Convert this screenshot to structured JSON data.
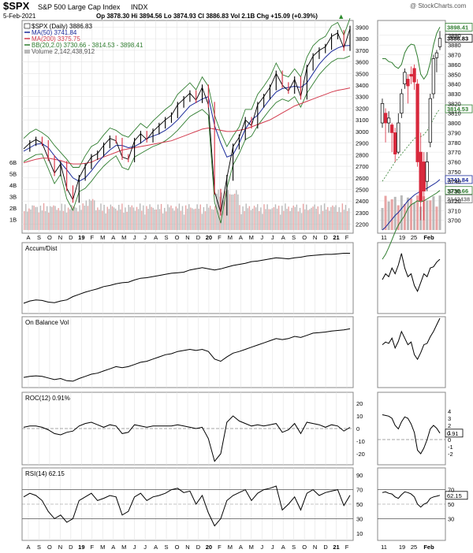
{
  "header": {
    "symbol": "$SPX",
    "name": "S&P 500 Large Cap Index",
    "exchange": "INDX",
    "watermark": "@ StockCharts.com",
    "date": "5-Feb-2021",
    "ohlc": "Op 3878.30  Hi 3894.56  Lo 3874.93  Cl 3886.83  Vol 2.1B  Chg +15.09 (+0.39%)",
    "arrow": "▲"
  },
  "legend": {
    "spx": "$SPX (Daily) 3886.83",
    "ma50": "MA(50) 3741.84",
    "ma200": "MA(200) 3375.75",
    "bb": "BB(20,2.0) 3730.66 - 3814.53 - 3898.41",
    "volume": "Volume 2,142,438,912"
  },
  "colors": {
    "ma50": "#1a2a9a",
    "ma200": "#d23b4e",
    "bb": "#2f7d2f",
    "price_up": "#000000",
    "price_down": "#d8283c",
    "volume": "#b9b9b9",
    "volume_down": "#e8a3a3",
    "grid": "#e3e3e3"
  },
  "main_axis": {
    "y_ticks": [
      "3900",
      "3800",
      "3700",
      "3600",
      "3500",
      "3400",
      "3300",
      "3200",
      "3100",
      "3000",
      "2900",
      "2800",
      "2700",
      "2600",
      "2500",
      "2400",
      "2300",
      "2200"
    ],
    "volume_ticks": [
      "6B",
      "5B",
      "4B",
      "3B",
      "2B",
      "1B"
    ],
    "x_ticks": [
      "A",
      "S",
      "O",
      "N",
      "D",
      "19",
      "F",
      "M",
      "A",
      "M",
      "J",
      "J",
      "A",
      "S",
      "O",
      "N",
      "D",
      "20",
      "F",
      "M",
      "A",
      "M",
      "J",
      "J",
      "A",
      "S",
      "O",
      "N",
      "D",
      "21",
      "F"
    ]
  },
  "zoom_axis": {
    "y_ticks": [
      "3890",
      "3880",
      "3870",
      "3860",
      "3850",
      "3840",
      "3830",
      "3820",
      "3810",
      "3800",
      "3790",
      "3780",
      "3770",
      "3760",
      "3750",
      "3740",
      "3730",
      "3720",
      "3710",
      "3700"
    ],
    "x_ticks": [
      "11",
      "19",
      "25",
      "Feb"
    ],
    "value_tags": [
      {
        "label": "3898.41",
        "value": 3898.41,
        "color": "#2f7d2f"
      },
      {
        "label": "3886.83",
        "value": 3886.83,
        "color": "#000000"
      },
      {
        "label": "3814.53",
        "value": 3814.53,
        "color": "#2f7d2f"
      },
      {
        "label": "3741.84",
        "value": 3741.84,
        "color": "#1a2a9a"
      },
      {
        "label": "3730.66",
        "value": 3730.66,
        "color": "#2f7d2f"
      },
      {
        "label": "2142438",
        "value": 3722,
        "color": "#777777"
      }
    ]
  },
  "panels": {
    "ad": {
      "label": "Accum/Dist"
    },
    "obv": {
      "label": "On Balance Vol"
    },
    "roc": {
      "label": "ROC(12) 0.91%",
      "y_ticks": [
        "20",
        "10",
        "0",
        "-10",
        "-20"
      ],
      "zoom_ticks": [
        "4",
        "3",
        "2",
        "1",
        "0",
        "-1",
        "-2"
      ],
      "tag": "0.91"
    },
    "rsi": {
      "label": "RSI(14) 62.15",
      "y_ticks": [
        "90",
        "70",
        "50",
        "30",
        "10"
      ],
      "zoom_ticks": [
        "70",
        "50",
        "30"
      ],
      "tag": "62.15"
    }
  },
  "chart_data": {
    "type": "line",
    "x_range": [
      "2018-08",
      "2021-02-05"
    ],
    "price_ylim": [
      2150,
      3930
    ],
    "price_series": {
      "name": "$SPX",
      "values": [
        2850,
        2900,
        2930,
        2900,
        2770,
        2640,
        2720,
        2510,
        2410,
        2600,
        2700,
        2780,
        2810,
        2880,
        2940,
        2920,
        2780,
        2760,
        2920,
        2980,
        2930,
        3000,
        3050,
        3100,
        3140,
        3230,
        3280,
        3330,
        3270,
        3380,
        3230,
        2480,
        2300,
        2600,
        2870,
        2950,
        3100,
        3050,
        3230,
        3300,
        3380,
        3500,
        3400,
        3350,
        3450,
        3300,
        3550,
        3650,
        3700,
        3730,
        3820,
        3850,
        3720,
        3886.83
      ]
    },
    "ma50_values": [
      2830,
      2860,
      2890,
      2895,
      2860,
      2790,
      2730,
      2670,
      2600,
      2570,
      2600,
      2660,
      2730,
      2790,
      2840,
      2880,
      2880,
      2860,
      2870,
      2900,
      2940,
      2960,
      2980,
      3010,
      3050,
      3100,
      3160,
      3220,
      3250,
      3280,
      3300,
      3050,
      2900,
      2780,
      2800,
      2900,
      3020,
      3100,
      3140,
      3210,
      3280,
      3340,
      3370,
      3380,
      3390,
      3380,
      3420,
      3500,
      3580,
      3640,
      3690,
      3720,
      3740,
      3741.84
    ],
    "ma200_values": [
      2730,
      2745,
      2760,
      2770,
      2770,
      2760,
      2750,
      2730,
      2720,
      2720,
      2725,
      2735,
      2760,
      2780,
      2800,
      2820,
      2840,
      2850,
      2860,
      2870,
      2880,
      2890,
      2900,
      2910,
      2920,
      2940,
      2960,
      2980,
      3000,
      3020,
      3030,
      3020,
      3010,
      3000,
      3000,
      3010,
      3020,
      3040,
      3060,
      3080,
      3100,
      3130,
      3160,
      3190,
      3220,
      3240,
      3260,
      3280,
      3300,
      3320,
      3340,
      3355,
      3365,
      3375.75
    ],
    "zoom_ylim": [
      3690,
      3902
    ],
    "zoom_candles": [
      {
        "o": 3800,
        "c": 3820,
        "h": 3825,
        "l": 3795
      },
      {
        "o": 3810,
        "c": 3800,
        "h": 3815,
        "l": 3780
      },
      {
        "o": 3800,
        "c": 3805,
        "h": 3812,
        "l": 3790
      },
      {
        "o": 3798,
        "c": 3790,
        "h": 3800,
        "l": 3770
      },
      {
        "o": 3790,
        "c": 3768,
        "h": 3795,
        "l": 3760
      },
      {
        "o": 3770,
        "c": 3800,
        "h": 3810,
        "l": 3768
      },
      {
        "o": 3810,
        "c": 3830,
        "h": 3835,
        "l": 3805
      },
      {
        "o": 3840,
        "c": 3852,
        "h": 3856,
        "l": 3835
      },
      {
        "o": 3845,
        "c": 3838,
        "h": 3850,
        "l": 3820
      },
      {
        "o": 3850,
        "c": 3848,
        "h": 3858,
        "l": 3840
      },
      {
        "o": 3856,
        "c": 3842,
        "h": 3860,
        "l": 3834
      },
      {
        "o": 3840,
        "c": 3760,
        "h": 3845,
        "l": 3755
      },
      {
        "o": 3770,
        "c": 3720,
        "h": 3790,
        "l": 3700
      },
      {
        "o": 3760,
        "c": 3730,
        "h": 3770,
        "l": 3700
      },
      {
        "o": 3740,
        "c": 3760,
        "h": 3770,
        "l": 3730
      },
      {
        "o": 3780,
        "c": 3825,
        "h": 3830,
        "l": 3775
      },
      {
        "o": 3830,
        "c": 3866,
        "h": 3870,
        "l": 3825
      },
      {
        "o": 3867,
        "c": 3872,
        "h": 3875,
        "l": 3852
      },
      {
        "o": 3878.3,
        "c": 3886.83,
        "h": 3894.56,
        "l": 3874.93
      }
    ],
    "zoom_bb_upper": [
      3866,
      3866,
      3863,
      3862,
      3858,
      3856,
      3860,
      3872,
      3878,
      3881,
      3880,
      3868,
      3850,
      3845,
      3850,
      3862,
      3880,
      3892,
      3898.41
    ],
    "zoom_bb_lower": [
      3660,
      3665,
      3672,
      3680,
      3688,
      3695,
      3700,
      3705,
      3712,
      3716,
      3718,
      3720,
      3719,
      3720,
      3722,
      3724,
      3726,
      3728,
      3730.66
    ],
    "zoom_ma50": [
      3690,
      3693,
      3697,
      3701,
      3705,
      3708,
      3712,
      3716,
      3720,
      3723,
      3726,
      3728,
      3730,
      3731,
      3733,
      3735,
      3737,
      3739,
      3741.84
    ],
    "zoom_bb_mid": [
      3740,
      3745,
      3750,
      3755,
      3760,
      3764,
      3768,
      3772,
      3776,
      3780,
      3784,
      3786,
      3786,
      3788,
      3792,
      3798,
      3804,
      3810,
      3814.53
    ],
    "ad_values": [
      10,
      14,
      16,
      15,
      12,
      11,
      14,
      16,
      22,
      26,
      30,
      33,
      36,
      40,
      42,
      45,
      47,
      48,
      52,
      55,
      56,
      58,
      60,
      62,
      64,
      65,
      66,
      70,
      72,
      74,
      72,
      70,
      72,
      75,
      78,
      80,
      82,
      85,
      86,
      88,
      90,
      92,
      91,
      90,
      92,
      93,
      95,
      96,
      97,
      98,
      98,
      99,
      100,
      100
    ],
    "obv_values": [
      10,
      12,
      13,
      12,
      9,
      6,
      8,
      4,
      3,
      8,
      12,
      16,
      18,
      22,
      26,
      30,
      28,
      30,
      34,
      38,
      40,
      44,
      48,
      52,
      54,
      58,
      60,
      62,
      60,
      62,
      58,
      44,
      40,
      48,
      55,
      58,
      62,
      66,
      70,
      74,
      78,
      82,
      80,
      82,
      86,
      84,
      88,
      92,
      93,
      94,
      96,
      97,
      98,
      100
    ],
    "roc_values": [
      1,
      2,
      2,
      1,
      -1,
      -4,
      -5,
      -3,
      -2,
      2,
      4,
      5,
      3,
      1,
      3,
      2,
      -4,
      -3,
      3,
      2,
      1,
      2,
      2,
      2,
      2,
      3,
      2,
      1,
      0,
      1,
      -8,
      -26,
      -20,
      5,
      10,
      6,
      4,
      2,
      3,
      2,
      3,
      4,
      -3,
      -1,
      4,
      -4,
      5,
      4,
      3,
      1,
      3,
      2,
      -2,
      0.91
    ],
    "rsi_values": [
      60,
      65,
      62,
      55,
      40,
      30,
      35,
      25,
      30,
      55,
      60,
      65,
      55,
      58,
      62,
      60,
      35,
      40,
      60,
      65,
      55,
      60,
      62,
      65,
      70,
      72,
      66,
      68,
      50,
      62,
      38,
      20,
      30,
      55,
      62,
      66,
      70,
      55,
      65,
      70,
      72,
      75,
      42,
      50,
      60,
      42,
      65,
      70,
      62,
      66,
      68,
      70,
      48,
      62.15
    ],
    "zoom_ad": [
      50,
      60,
      55,
      70,
      60,
      75,
      95,
      70,
      55,
      60,
      40,
      30,
      45,
      60,
      55,
      70,
      72,
      80,
      85
    ],
    "zoom_obv": [
      60,
      64,
      62,
      70,
      55,
      65,
      80,
      70,
      60,
      64,
      45,
      38,
      48,
      60,
      62,
      72,
      80,
      90,
      100
    ],
    "zoom_roc": [
      3.5,
      3.4,
      3.3,
      3.0,
      2.0,
      1.5,
      2.5,
      3.2,
      3.0,
      2.2,
      1.0,
      -1.5,
      -2.0,
      -1.2,
      0.0,
      1.5,
      2.0,
      1.6,
      0.91
    ],
    "zoom_rsi": [
      66,
      67,
      65,
      64,
      60,
      58,
      63,
      67,
      66,
      64,
      60,
      50,
      46,
      50,
      52,
      58,
      60,
      61,
      62.15
    ]
  }
}
